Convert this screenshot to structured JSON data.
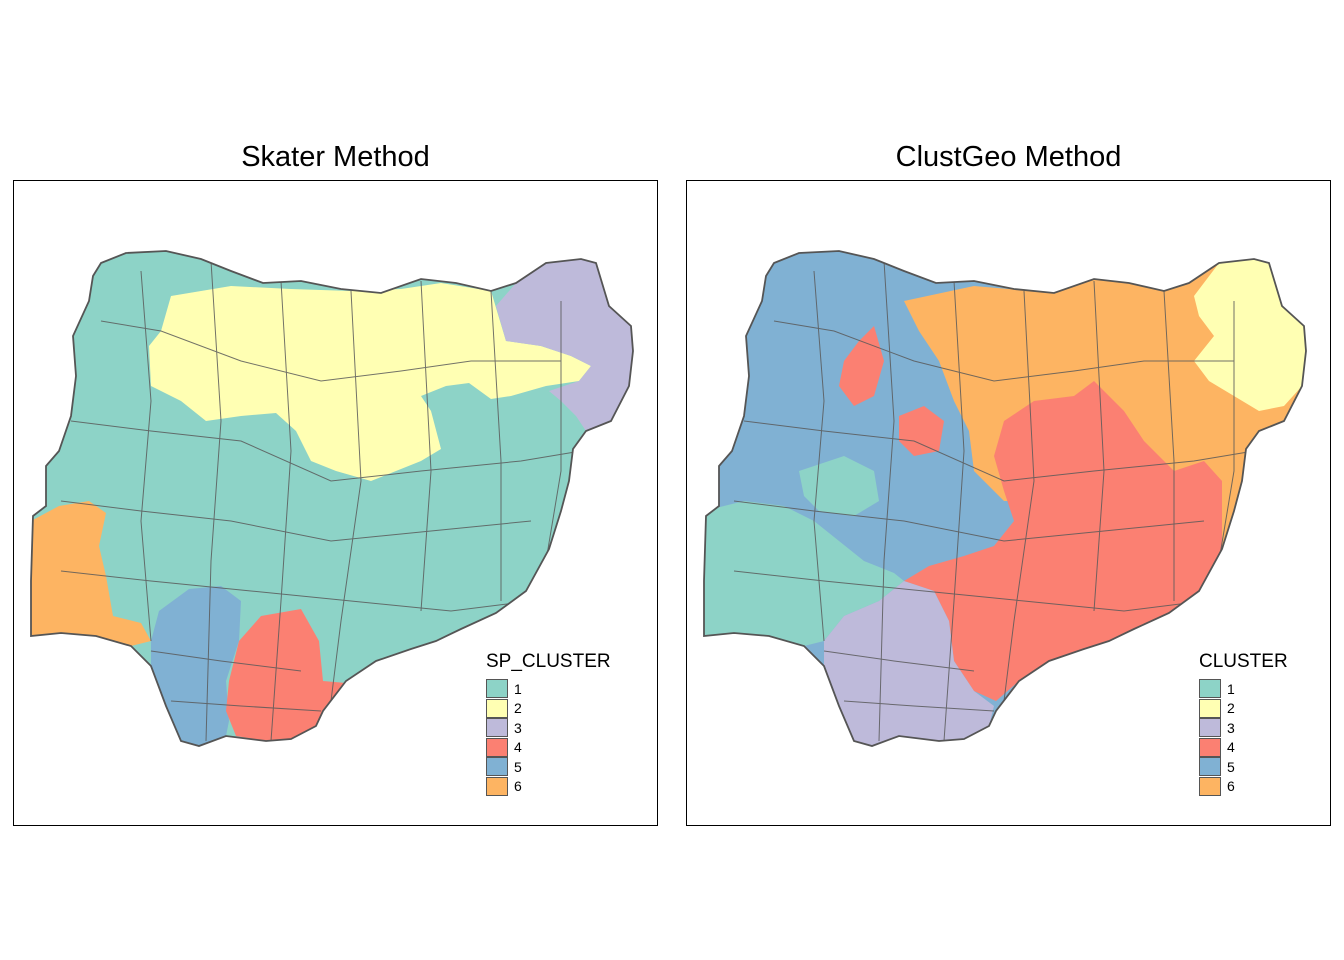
{
  "panels": [
    {
      "title": "Skater Method",
      "legend": {
        "title": "SP_CLUSTER",
        "items": [
          {
            "label": "1",
            "color": "#8DD3C7"
          },
          {
            "label": "2",
            "color": "#FFFFB3"
          },
          {
            "label": "3",
            "color": "#BEBADA"
          },
          {
            "label": "4",
            "color": "#FB8072"
          },
          {
            "label": "5",
            "color": "#80B1D3"
          },
          {
            "label": "6",
            "color": "#FDB462"
          }
        ]
      },
      "regions": [
        {
          "cluster": "2",
          "color": "#FFFFB3"
        },
        {
          "cluster": "3",
          "color": "#BEBADA"
        },
        {
          "cluster": "6",
          "color": "#FDB462"
        },
        {
          "cluster": "5",
          "color": "#80B1D3"
        },
        {
          "cluster": "4",
          "color": "#FB8072"
        }
      ]
    },
    {
      "title": "ClustGeo Method",
      "legend": {
        "title": "CLUSTER",
        "items": [
          {
            "label": "1",
            "color": "#8DD3C7"
          },
          {
            "label": "2",
            "color": "#FFFFB3"
          },
          {
            "label": "3",
            "color": "#BEBADA"
          },
          {
            "label": "4",
            "color": "#FB8072"
          },
          {
            "label": "5",
            "color": "#80B1D3"
          },
          {
            "label": "6",
            "color": "#FDB462"
          }
        ]
      },
      "regions": [
        {
          "cluster": "5",
          "color": "#80B1D3"
        },
        {
          "cluster": "6",
          "color": "#FDB462"
        },
        {
          "cluster": "2",
          "color": "#FFFFB3"
        },
        {
          "cluster": "4",
          "color": "#FB8072"
        },
        {
          "cluster": "1",
          "color": "#8DD3C7"
        },
        {
          "cluster": "3",
          "color": "#BEBADA"
        },
        {
          "cluster": "4",
          "color": "#FB8072"
        },
        {
          "cluster": "4",
          "color": "#FB8072"
        }
      ]
    }
  ]
}
